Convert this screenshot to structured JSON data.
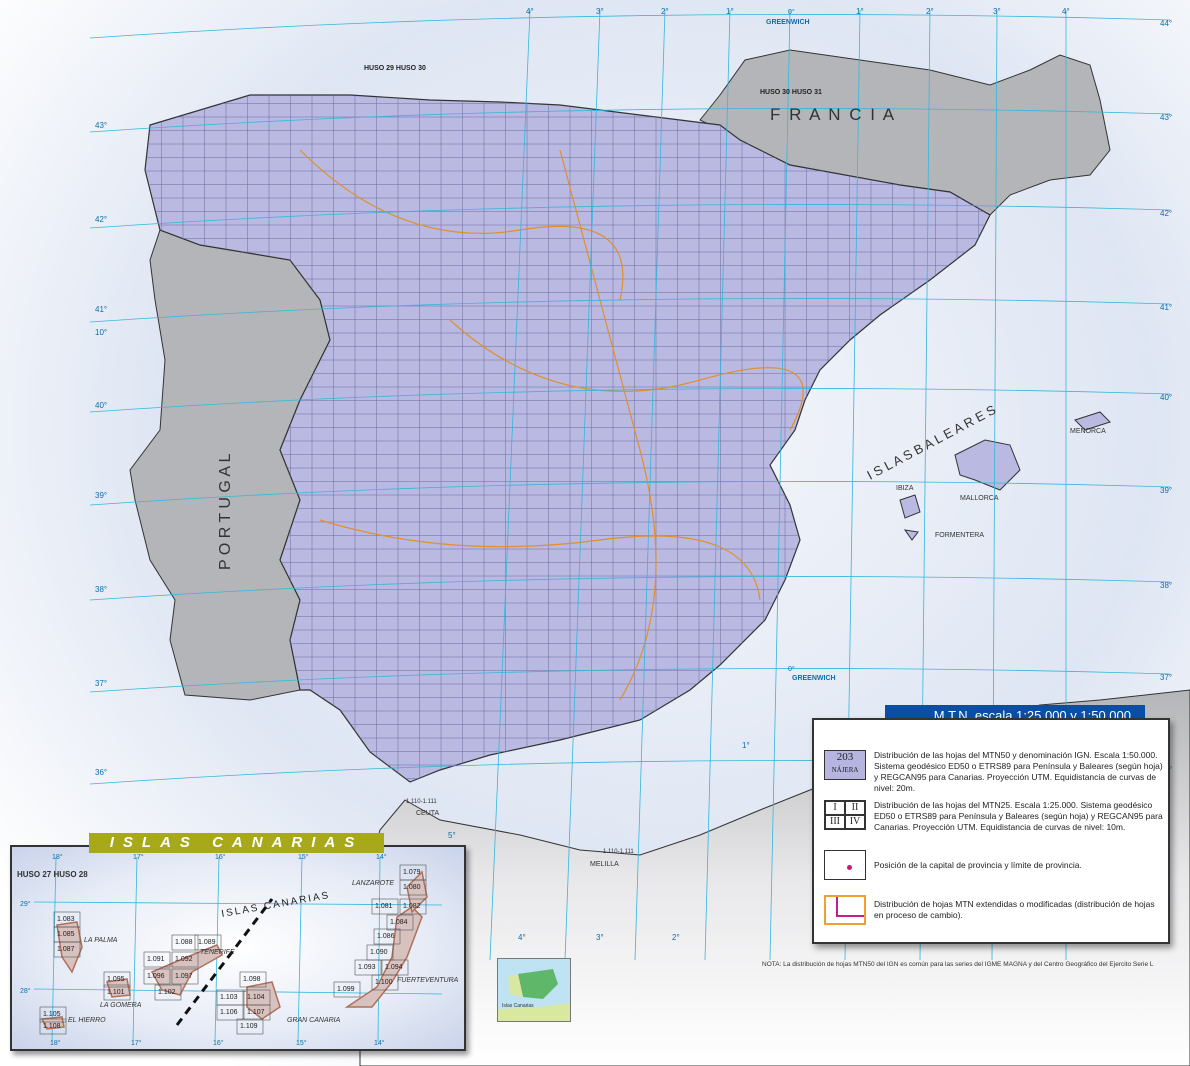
{
  "map": {
    "countries": {
      "france": "F R A N C I A",
      "portugal": "P O R T U G A L"
    },
    "islands": {
      "baleares": "I S L A S   B A L E A R E S",
      "mallorca": "MALLORCA",
      "menorca": "MENORCA",
      "ibiza": "IBIZA",
      "formentera": "FORMENTERA"
    },
    "cities": {
      "ceuta": "CEUTA",
      "melilla": "MELILLA",
      "ceuta_sheet": "1.110-1.111",
      "melilla_sheet": "1.110-1.111"
    },
    "greenwich_top": "GREENWICH",
    "greenwich_bottom": "GREENWICH",
    "zero_top": "0°",
    "zero_bottom": "0°",
    "huso_west": "HUSO 29  HUSO 30",
    "huso_east": "HUSO 30  HUSO 31",
    "longitudes_top": [
      "4°",
      "3°",
      "2°",
      "1°",
      "1°",
      "2°",
      "3°",
      "4°"
    ],
    "latitudes": [
      "44°",
      "43°",
      "42°",
      "41°",
      "40°",
      "39°",
      "38°",
      "37°",
      "36°"
    ],
    "latitudes_left": [
      "43°",
      "42°",
      "41°",
      "10°",
      "40°",
      "39°",
      "38°",
      "37°",
      "36°"
    ],
    "longitudes_bottom": [
      "5°",
      "4°",
      "3°",
      "2°",
      "1°"
    ],
    "colors": {
      "sea": "#dfe7f4",
      "land": "#b4b5b8",
      "sheet_fill": "#b9b9e2",
      "grid_line": "#6a6aa0",
      "province_boundary": "#e0902a",
      "capital": "#d0157a",
      "graticule": "#35b6dc"
    }
  },
  "legend": {
    "title": "M.T.N.    escala 1:25.000 y 1:50.000",
    "items": [
      {
        "symbol_number": "203",
        "symbol_name": "NÁJERA",
        "text": "Distribución de las hojas del MTN50 y denominación IGN. Escala 1:50.000. Sistema geodésico ED50 o ETRS89 para Península y Baleares (según hoja) y REGCAN95 para Canarias. Proyección UTM. Equidistancia de curvas de nivel: 20m."
      },
      {
        "quadrants": [
          "I",
          "II",
          "III",
          "IV"
        ],
        "text": "Distribución de las hojas del MTN25. Escala 1:25.000. Sistema geodésico ED50 o ETRS89 para Península y Baleares (según hoja) y REGCAN95 para Canarias. Proyección UTM. Equidistancia de curvas de nivel: 10m."
      },
      {
        "text": "Posición de la capital de provincia y límite de provincia."
      },
      {
        "text": "Distribución de hojas MTN extendidas o modificadas (distribución de hojas en proceso de cambio)."
      }
    ]
  },
  "note": "NOTA:    La distribución de hojas MTN50 del IGN es común para las series  del IGME MAGNA y del Centro Geográfico del Ejercito Serie L",
  "canarias": {
    "title": "ISLAS CANARIAS",
    "arc_label": "ISLAS CANARIAS",
    "huso": "HUSO 27   HUSO 28",
    "longitudes": [
      "18°",
      "17°",
      "16°",
      "15°",
      "14°"
    ],
    "latitudes": [
      "29°",
      "28°"
    ],
    "islands": [
      {
        "name": "LA PALMA",
        "sheets": [
          "1.083",
          "1.085",
          "1.087"
        ]
      },
      {
        "name": "TENERIFE",
        "sheets": [
          "1.088",
          "1.089",
          "1.091",
          "1.092",
          "1.096",
          "1.097",
          "1.102"
        ]
      },
      {
        "name": "LA GOMERA",
        "sheets": [
          "1.095",
          "1.101"
        ]
      },
      {
        "name": "EL HIERRO",
        "sheets": [
          "1.105",
          "1.108"
        ]
      },
      {
        "name": "GRAN CANARIA",
        "sheets": [
          "1.098",
          "1.103",
          "1.104",
          "1.106",
          "1.107",
          "1.109"
        ]
      },
      {
        "name": "LANZAROTE",
        "sheets": [
          "1.079",
          "1.080",
          "1.081",
          "1.082",
          "1.084"
        ]
      },
      {
        "name": "FUERTEVENTURA",
        "sheets": [
          "1.086",
          "1.090",
          "1.093",
          "1.094",
          "1.099",
          "1.100"
        ]
      }
    ]
  },
  "minimap": {
    "label": "Islas Canarias"
  }
}
